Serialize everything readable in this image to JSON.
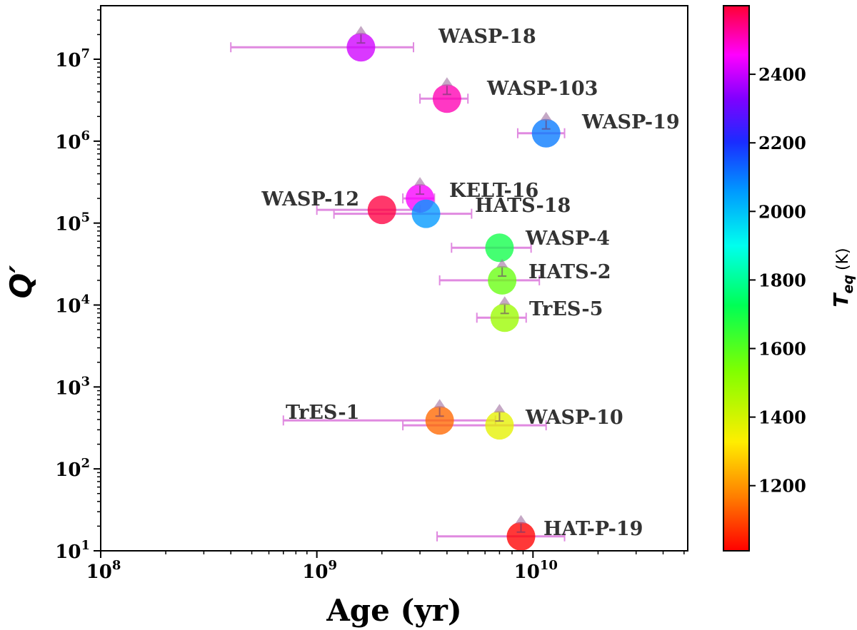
{
  "chart_data": {
    "type": "scatter",
    "title": "",
    "xlabel": "Age (yr)",
    "ylabel": "Q′",
    "xscale": "log",
    "yscale": "log",
    "xlim": [
      100000000,
      52000000000
    ],
    "ylim": [
      10,
      45000000
    ],
    "grid": false,
    "x_ticks": [
      {
        "value": 100000000,
        "base": "10",
        "exp": "8"
      },
      {
        "value": 1000000000,
        "base": "10",
        "exp": "9"
      },
      {
        "value": 10000000000,
        "base": "10",
        "exp": "10"
      }
    ],
    "y_ticks": [
      {
        "value": 10,
        "base": "10",
        "exp": "1"
      },
      {
        "value": 100,
        "base": "10",
        "exp": "2"
      },
      {
        "value": 1000,
        "base": "10",
        "exp": "3"
      },
      {
        "value": 10000,
        "base": "10",
        "exp": "4"
      },
      {
        "value": 100000,
        "base": "10",
        "exp": "5"
      },
      {
        "value": 1000000,
        "base": "10",
        "exp": "6"
      },
      {
        "value": 10000000,
        "base": "10",
        "exp": "7"
      }
    ],
    "colorbar": {
      "label": "T",
      "label_sub": "eq",
      "label_unit": "(K)",
      "range": [
        1010,
        2600
      ],
      "ticks": [
        1200,
        1400,
        1600,
        1800,
        2000,
        2200,
        2400
      ]
    },
    "points": [
      {
        "name": "WASP-18",
        "age": 1600000000,
        "age_lo": 400000000,
        "age_hi": 2800000000,
        "q": 14000000,
        "teq": 2410,
        "lower_limit": true
      },
      {
        "name": "WASP-103",
        "age": 4000000000,
        "age_lo": 3000000000,
        "age_hi": 5000000000,
        "q": 3300000,
        "teq": 2510,
        "lower_limit": true
      },
      {
        "name": "WASP-19",
        "age": 11500000000,
        "age_lo": 8500000000,
        "age_hi": 14000000000,
        "q": 1250000,
        "teq": 2100,
        "lower_limit": true
      },
      {
        "name": "KELT-16",
        "age": 3000000000,
        "age_lo": 2500000000,
        "age_hi": 3500000000,
        "q": 200000,
        "teq": 2450,
        "lower_limit": true
      },
      {
        "name": "WASP-12",
        "age": 2000000000,
        "age_lo": 1000000000,
        "age_hi": 3000000000,
        "q": 145000,
        "teq": 2590,
        "lower_limit": false
      },
      {
        "name": "HATS-18",
        "age": 3200000000,
        "age_lo": 1200000000,
        "age_hi": 5200000000,
        "q": 130000,
        "teq": 2060,
        "lower_limit": false
      },
      {
        "name": "WASP-4",
        "age": 7000000000,
        "age_lo": 4200000000,
        "age_hi": 9800000000,
        "q": 50000,
        "teq": 1700,
        "lower_limit": false
      },
      {
        "name": "HATS-2",
        "age": 7200000000,
        "age_lo": 3700000000,
        "age_hi": 10700000000,
        "q": 20000,
        "teq": 1570,
        "lower_limit": true
      },
      {
        "name": "TrES-5",
        "age": 7400000000,
        "age_lo": 5500000000,
        "age_hi": 9300000000,
        "q": 7000,
        "teq": 1490,
        "lower_limit": true
      },
      {
        "name": "TrES-1",
        "age": 3700000000,
        "age_lo": 700000000,
        "age_hi": 6700000000,
        "q": 390,
        "teq": 1140,
        "lower_limit": true
      },
      {
        "name": "WASP-10",
        "age": 7000000000,
        "age_lo": 2500000000,
        "age_hi": 11500000000,
        "q": 340,
        "teq": 1370,
        "lower_limit": true
      },
      {
        "name": "HAT-P-19",
        "age": 8800000000,
        "age_lo": 3600000000,
        "age_hi": 14000000000,
        "q": 15,
        "teq": 1010,
        "lower_limit": true
      }
    ]
  }
}
